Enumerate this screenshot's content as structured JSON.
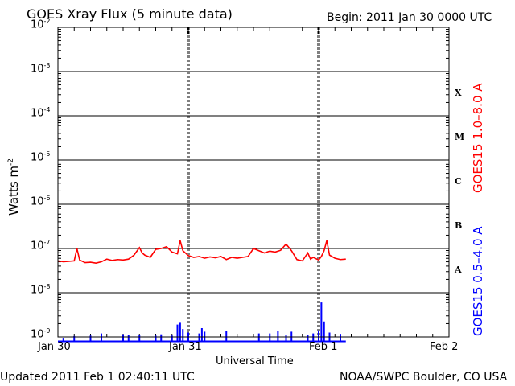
{
  "header": {
    "title": "GOES Xray Flux (5 minute data)",
    "begin": "Begin:  2011 Jan 30 0000 UTC"
  },
  "footer": {
    "updated": "Updated 2011 Feb  1 02:40:11 UTC",
    "credit": "NOAA/SWPC Boulder, CO USA"
  },
  "colors": {
    "long": "#ff0000",
    "short": "#0000ff",
    "axis": "#000000"
  },
  "chart_data": {
    "type": "line",
    "title": "GOES Xray Flux (5 minute data)",
    "xlabel": "Universal Time",
    "ylabel_base": "Watts m",
    "ylabel_exp": "-2",
    "y_scale": "log",
    "ylim": [
      1e-09,
      0.01
    ],
    "xlim": [
      0,
      72
    ],
    "x_units": "hours since 2011 Jan 30 0000 UTC",
    "x_ticks": [
      {
        "hour": 0,
        "label": "Jan 30"
      },
      {
        "hour": 24,
        "label": "Jan 31"
      },
      {
        "hour": 48,
        "label": "Feb 1"
      },
      {
        "hour": 72,
        "label": "Feb 2"
      }
    ],
    "y_ticks": [
      {
        "exp": -2,
        "base": "10",
        "sup": "-2"
      },
      {
        "exp": -3,
        "base": "10",
        "sup": "-3"
      },
      {
        "exp": -4,
        "base": "10",
        "sup": "-4"
      },
      {
        "exp": -5,
        "base": "10",
        "sup": "-5"
      },
      {
        "exp": -6,
        "base": "10",
        "sup": "-6"
      },
      {
        "exp": -7,
        "base": "10",
        "sup": "-7"
      },
      {
        "exp": -8,
        "base": "10",
        "sup": "-8"
      },
      {
        "exp": -9,
        "base": "10",
        "sup": "-9"
      }
    ],
    "flare_classes": [
      {
        "label": "X",
        "exp": -3.5
      },
      {
        "label": "M",
        "exp": -4.5
      },
      {
        "label": "C",
        "exp": -5.5
      },
      {
        "label": "B",
        "exp": -6.5
      },
      {
        "label": "A",
        "exp": -7.5
      }
    ],
    "series": [
      {
        "name": "GOES15 1.0–8.0 A",
        "color": "#ff0000",
        "points": [
          [
            0,
            -7.28
          ],
          [
            1,
            -7.3
          ],
          [
            2,
            -7.29
          ],
          [
            3,
            -7.28
          ],
          [
            3.5,
            -7.0
          ],
          [
            4,
            -7.26
          ],
          [
            5,
            -7.32
          ],
          [
            6,
            -7.31
          ],
          [
            7,
            -7.33
          ],
          [
            8,
            -7.3
          ],
          [
            9,
            -7.24
          ],
          [
            10,
            -7.27
          ],
          [
            11,
            -7.25
          ],
          [
            12,
            -7.26
          ],
          [
            13,
            -7.24
          ],
          [
            14,
            -7.15
          ],
          [
            15,
            -6.98
          ],
          [
            15.5,
            -7.1
          ],
          [
            16,
            -7.15
          ],
          [
            17,
            -7.2
          ],
          [
            18,
            -7.02
          ],
          [
            19,
            -7.0
          ],
          [
            20,
            -6.96
          ],
          [
            21,
            -7.08
          ],
          [
            22,
            -7.12
          ],
          [
            22.5,
            -6.82
          ],
          [
            23,
            -7.05
          ],
          [
            24,
            -7.16
          ],
          [
            25,
            -7.2
          ],
          [
            26,
            -7.18
          ],
          [
            27,
            -7.22
          ],
          [
            28,
            -7.19
          ],
          [
            29,
            -7.21
          ],
          [
            30,
            -7.18
          ],
          [
            31,
            -7.25
          ],
          [
            32,
            -7.2
          ],
          [
            33,
            -7.22
          ],
          [
            34,
            -7.2
          ],
          [
            35,
            -7.18
          ],
          [
            36,
            -7.0
          ],
          [
            37,
            -7.05
          ],
          [
            38,
            -7.1
          ],
          [
            39,
            -7.06
          ],
          [
            40,
            -7.08
          ],
          [
            41,
            -7.04
          ],
          [
            42,
            -6.9
          ],
          [
            43,
            -7.05
          ],
          [
            44,
            -7.25
          ],
          [
            45,
            -7.28
          ],
          [
            46,
            -7.1
          ],
          [
            46.5,
            -7.24
          ],
          [
            47,
            -7.2
          ],
          [
            48,
            -7.26
          ],
          [
            48.5,
            -7.18
          ],
          [
            49,
            -7.05
          ],
          [
            49.5,
            -6.82
          ],
          [
            50,
            -7.15
          ],
          [
            51,
            -7.22
          ],
          [
            52,
            -7.25
          ],
          [
            53,
            -7.24
          ]
        ]
      },
      {
        "name": "GOES15 0.5–4.0 A",
        "color": "#0000ff",
        "baseline_exp": -9.1,
        "spikes": [
          [
            1,
            -9.02
          ],
          [
            3,
            -8.98
          ],
          [
            6,
            -8.97
          ],
          [
            8,
            -8.92
          ],
          [
            12,
            -8.94
          ],
          [
            13,
            -8.96
          ],
          [
            15,
            -8.96
          ],
          [
            18,
            -8.97
          ],
          [
            19,
            -8.94
          ],
          [
            21,
            -8.97
          ],
          [
            22,
            -8.72
          ],
          [
            22.5,
            -8.68
          ],
          [
            23,
            -8.82
          ],
          [
            24,
            -8.9
          ],
          [
            26,
            -8.92
          ],
          [
            26.5,
            -8.8
          ],
          [
            27,
            -8.88
          ],
          [
            31,
            -8.86
          ],
          [
            37,
            -8.92
          ],
          [
            39,
            -8.92
          ],
          [
            40.5,
            -8.86
          ],
          [
            42,
            -8.96
          ],
          [
            43,
            -8.88
          ],
          [
            46,
            -8.95
          ],
          [
            47,
            -8.92
          ],
          [
            48,
            -8.85
          ],
          [
            48.5,
            -8.22
          ],
          [
            49,
            -8.65
          ],
          [
            50,
            -8.9
          ],
          [
            52,
            -8.93
          ]
        ]
      }
    ]
  }
}
